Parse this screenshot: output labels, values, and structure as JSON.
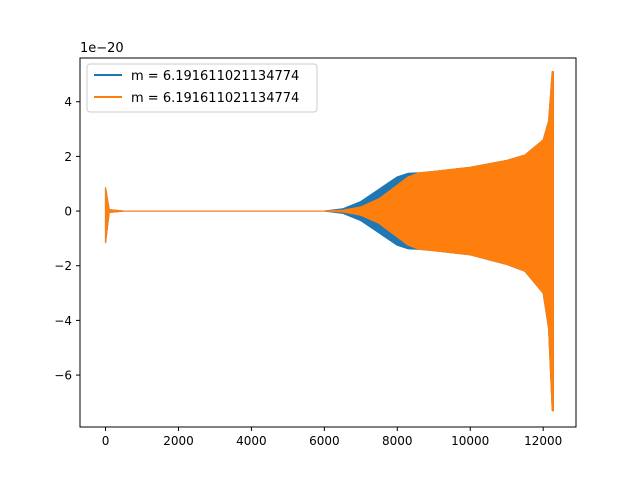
{
  "chart_data": {
    "type": "line",
    "title": "",
    "xlabel": "",
    "ylabel": "",
    "y_offset_label": "1e−20",
    "xlim": [
      -700,
      12900
    ],
    "ylim": [
      -7.9,
      5.6
    ],
    "xticks": [
      0,
      2000,
      4000,
      6000,
      8000,
      10000,
      12000
    ],
    "xtick_labels": [
      "0",
      "2000",
      "4000",
      "6000",
      "8000",
      "10000",
      "12000"
    ],
    "yticks": [
      -6,
      -4,
      -2,
      0,
      2,
      4
    ],
    "ytick_labels": [
      "−6",
      "−4",
      "−2",
      "0",
      "2",
      "4"
    ],
    "grid": false,
    "legend_position": "upper-left",
    "series": [
      {
        "name": "m = 6.191611021134774",
        "color": "#1f77b4",
        "envelope": {
          "x": [
            0,
            100,
            500,
            6000,
            6500,
            7000,
            7500,
            8000,
            8300,
            8600,
            9000,
            10000,
            11000,
            11500,
            12000,
            12150,
            12250,
            12280
          ],
          "upper": [
            0.85,
            0.05,
            0.0,
            0.0,
            0.08,
            0.35,
            0.8,
            1.25,
            1.38,
            1.4,
            1.45,
            1.6,
            1.85,
            2.05,
            2.6,
            3.3,
            5.1,
            5.1
          ],
          "lower": [
            -1.15,
            -0.05,
            0.0,
            0.0,
            -0.08,
            -0.35,
            -0.8,
            -1.25,
            -1.38,
            -1.4,
            -1.45,
            -1.6,
            -1.95,
            -2.2,
            -3.0,
            -4.3,
            -7.3,
            -7.3
          ]
        }
      },
      {
        "name": "m = 6.191611021134774",
        "color": "#ff7f0e",
        "envelope": {
          "x": [
            0,
            100,
            500,
            6000,
            6500,
            7000,
            7500,
            8000,
            8300,
            8600,
            9000,
            10000,
            11000,
            11500,
            12000,
            12150,
            12250,
            12280
          ],
          "upper": [
            0.85,
            0.05,
            0.0,
            0.0,
            0.03,
            0.15,
            0.45,
            0.95,
            1.25,
            1.4,
            1.45,
            1.6,
            1.85,
            2.05,
            2.6,
            3.3,
            5.1,
            5.1
          ],
          "lower": [
            -1.15,
            -0.05,
            0.0,
            0.0,
            -0.03,
            -0.15,
            -0.45,
            -0.95,
            -1.25,
            -1.4,
            -1.45,
            -1.6,
            -1.95,
            -2.2,
            -3.0,
            -4.3,
            -7.3,
            -7.3
          ]
        }
      }
    ]
  }
}
